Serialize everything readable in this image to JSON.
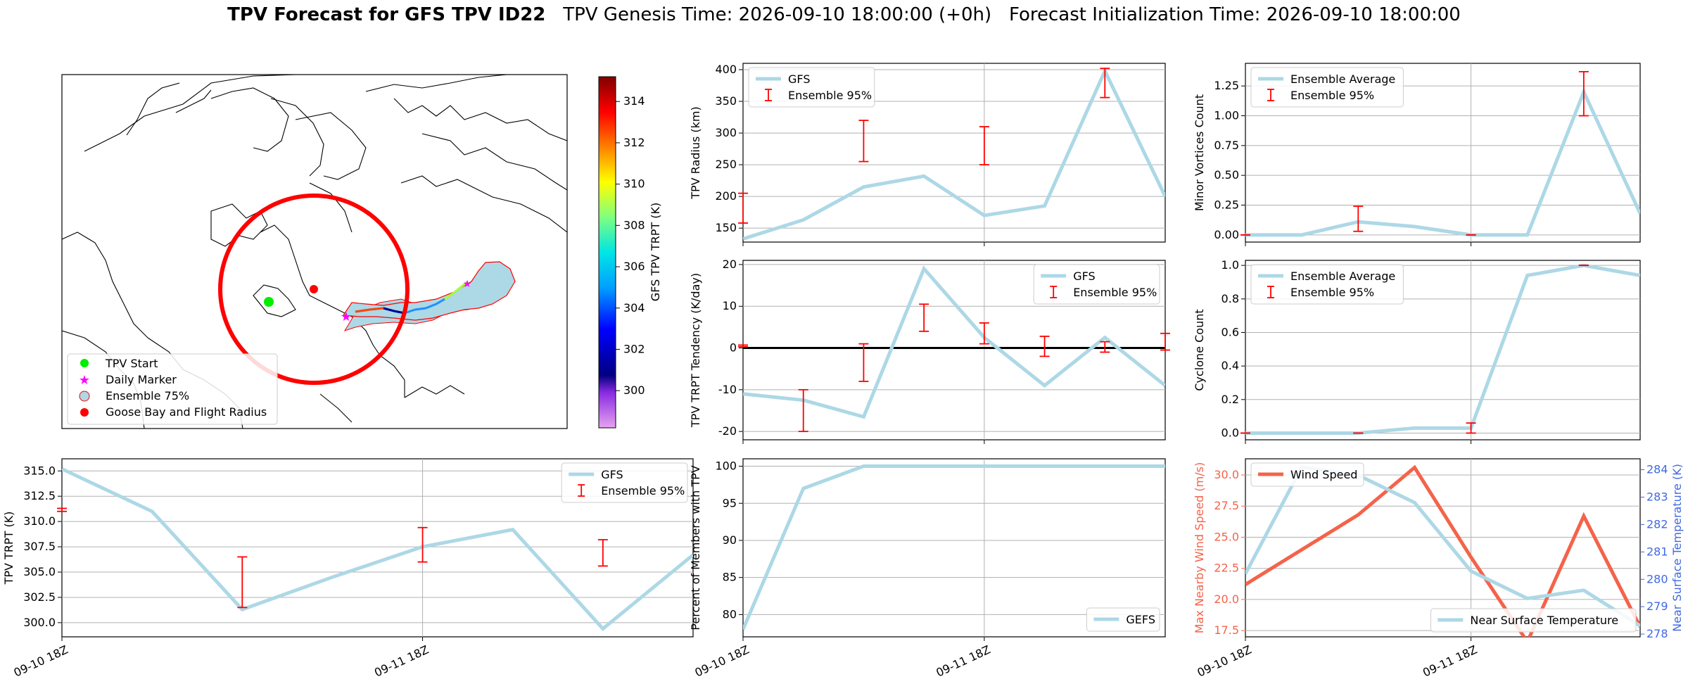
{
  "title": {
    "main": "TPV Forecast for GFS TPV ID22",
    "genesis": "TPV Genesis Time: 2026-09-10 18:00:00 (+0h)",
    "init": "Forecast Initialization Time: 2026-09-10 18:00:00"
  },
  "colors": {
    "gfs_line": "#add8e6",
    "errorbar": "#ff0000",
    "wind": "#f4634a",
    "temp_axis": "#4169e1",
    "radius_circle": "#ff0000"
  },
  "map": {
    "legend": [
      {
        "label": "TPV Start",
        "icon": "green-dot-icon"
      },
      {
        "label": "Daily Marker",
        "icon": "magenta-star-icon"
      },
      {
        "label": "Ensemble 75%",
        "icon": "blue-patch-icon"
      },
      {
        "label": "Goose Bay and Flight Radius",
        "icon": "red-dot-icon"
      }
    ],
    "colorbar": {
      "label": "GFS TPV TRPT (K)",
      "ticks": [
        300,
        302,
        304,
        306,
        308,
        310,
        312,
        314
      ],
      "min": 298.2,
      "max": 315.2
    }
  },
  "chart_data": [
    {
      "id": "radius",
      "type": "line",
      "x": [
        "2026-09-10 18Z",
        "2026-09-11 00Z",
        "2026-09-11 06Z",
        "2026-09-11 12Z",
        "2026-09-11 18Z",
        "2026-09-12 00Z",
        "2026-09-12 06Z",
        "2026-09-12 12Z"
      ],
      "series": [
        {
          "name": "GFS",
          "values": [
            133,
            163,
            215,
            232,
            170,
            185,
            398,
            200
          ]
        }
      ],
      "errorbars": {
        "name": "Ensemble 95%",
        "x": [
          "2026-09-10 18Z",
          "2026-09-11 06Z",
          "2026-09-11 18Z",
          "2026-09-12 06Z"
        ],
        "low": [
          158,
          255,
          250,
          356
        ],
        "high": [
          205,
          320,
          310,
          402
        ]
      },
      "ylabel": "TPV Radius (km)",
      "ylim": [
        128,
        410
      ],
      "yticks": [
        150,
        200,
        250,
        300,
        350,
        400
      ],
      "legend": "top-left"
    },
    {
      "id": "minor",
      "type": "line",
      "x": [
        "2026-09-10 18Z",
        "2026-09-11 00Z",
        "2026-09-11 06Z",
        "2026-09-11 12Z",
        "2026-09-11 18Z",
        "2026-09-12 00Z",
        "2026-09-12 06Z",
        "2026-09-12 12Z"
      ],
      "series": [
        {
          "name": "Ensemble Average",
          "values": [
            0,
            0,
            0.11,
            0.07,
            0,
            0,
            1.2,
            0.18
          ]
        }
      ],
      "errorbars": {
        "name": "Ensemble 95%",
        "x": [
          "2026-09-10 18Z",
          "2026-09-11 06Z",
          "2026-09-11 18Z",
          "2026-09-12 06Z"
        ],
        "low": [
          0,
          0.03,
          0,
          1.0
        ],
        "high": [
          0,
          0.24,
          0,
          1.37
        ]
      },
      "ylabel": "Minor Vortices Count",
      "ylim": [
        -0.06,
        1.44
      ],
      "yticks": [
        "0.00",
        "0.25",
        "0.50",
        "0.75",
        "1.00",
        "1.25"
      ],
      "legend": "top-left"
    },
    {
      "id": "tendency",
      "type": "line",
      "x": [
        "2026-09-10 18Z",
        "2026-09-11 00Z",
        "2026-09-11 06Z",
        "2026-09-11 12Z",
        "2026-09-11 18Z",
        "2026-09-12 00Z",
        "2026-09-12 06Z",
        "2026-09-12 12Z"
      ],
      "series": [
        {
          "name": "GFS",
          "values": [
            -11,
            -12.5,
            -16.5,
            19,
            2.5,
            -9,
            2.5,
            -9
          ]
        }
      ],
      "errorbars": {
        "name": "Ensemble 95%",
        "x": [
          "2026-09-10 18Z",
          "2026-09-11 00Z",
          "2026-09-11 06Z",
          "2026-09-11 12Z",
          "2026-09-11 18Z",
          "2026-09-12 00Z",
          "2026-09-12 06Z",
          "2026-09-12 12Z"
        ],
        "low": [
          0.3,
          -20,
          -8,
          4,
          1,
          -2,
          -1,
          -0.5
        ],
        "high": [
          0.7,
          -10,
          1,
          10.5,
          6,
          2.8,
          1.5,
          3.5
        ]
      },
      "ylabel": "TPV TRPT Tendency (K/day)",
      "ylim": [
        -22,
        21
      ],
      "yticks": [
        -20,
        -10,
        0,
        10,
        20
      ],
      "zero_line": true,
      "legend": "top-right"
    },
    {
      "id": "cyclone",
      "type": "line",
      "x": [
        "2026-09-10 18Z",
        "2026-09-11 00Z",
        "2026-09-11 06Z",
        "2026-09-11 12Z",
        "2026-09-11 18Z",
        "2026-09-12 00Z",
        "2026-09-12 06Z",
        "2026-09-12 12Z"
      ],
      "series": [
        {
          "name": "Ensemble Average",
          "values": [
            0,
            0,
            0,
            0.03,
            0.03,
            0.94,
            1.0,
            0.94
          ]
        }
      ],
      "errorbars": {
        "name": "Ensemble 95%",
        "x": [
          "2026-09-10 18Z",
          "2026-09-11 06Z",
          "2026-09-11 18Z",
          "2026-09-12 06Z"
        ],
        "low": [
          0,
          0,
          0,
          1.0
        ],
        "high": [
          0,
          0,
          0.06,
          1.0
        ]
      },
      "ylabel": "Cyclone Count",
      "ylim": [
        -0.04,
        1.03
      ],
      "yticks": [
        "0.0",
        "0.2",
        "0.4",
        "0.6",
        "0.8",
        "1.0"
      ],
      "legend": "top-left"
    },
    {
      "id": "trpt",
      "type": "line",
      "x": [
        "2026-09-10 18Z",
        "2026-09-11 00Z",
        "2026-09-11 06Z",
        "2026-09-11 12Z",
        "2026-09-11 18Z",
        "2026-09-12 00Z",
        "2026-09-12 06Z",
        "2026-09-12 12Z"
      ],
      "series": [
        {
          "name": "GFS",
          "values": [
            315.2,
            311,
            301.3,
            304.5,
            307.5,
            309.2,
            299.4,
            306.7
          ]
        }
      ],
      "errorbars": {
        "name": "Ensemble 95%",
        "x": [
          "2026-09-10 18Z",
          "2026-09-11 06Z",
          "2026-09-11 18Z",
          "2026-09-12 06Z"
        ],
        "low": [
          311,
          301.5,
          306,
          305.6
        ],
        "high": [
          311.3,
          306.5,
          309.4,
          308.2
        ]
      },
      "ylabel": "TPV TRPT (K)",
      "ylim": [
        298.6,
        316.2
      ],
      "yticks": [
        "300.0",
        "302.5",
        "305.0",
        "307.5",
        "310.0",
        "312.5",
        "315.0"
      ],
      "xtick_labels": [
        "09-10 18Z",
        "09-11 18Z"
      ],
      "legend": "top-right"
    },
    {
      "id": "members",
      "type": "line",
      "x": [
        "2026-09-10 18Z",
        "2026-09-11 00Z",
        "2026-09-11 06Z",
        "2026-09-11 12Z",
        "2026-09-11 18Z",
        "2026-09-12 00Z",
        "2026-09-12 06Z",
        "2026-09-12 12Z"
      ],
      "series": [
        {
          "name": "GEFS",
          "values": [
            78,
            97,
            100,
            100,
            100,
            100,
            100,
            100
          ]
        }
      ],
      "ylabel": "Percent of Members with TPV",
      "ylim": [
        77,
        101
      ],
      "yticks": [
        80,
        85,
        90,
        95,
        100
      ],
      "xtick_labels": [
        "09-10 18Z",
        "09-11 18Z"
      ],
      "legend": "bottom-right"
    },
    {
      "id": "wind",
      "type": "line",
      "x": [
        "2026-09-10 18Z",
        "2026-09-11 00Z",
        "2026-09-11 06Z",
        "2026-09-11 12Z",
        "2026-09-11 18Z",
        "2026-09-12 00Z",
        "2026-09-12 06Z",
        "2026-09-12 12Z"
      ],
      "series": [
        {
          "name": "Wind Speed",
          "axis": "left",
          "values": [
            21.2,
            24.0,
            26.8,
            30.6,
            23.4,
            16.6,
            26.7,
            17.8
          ]
        },
        {
          "name": "Near Surface Temperature",
          "axis": "right",
          "values": [
            280.2,
            284.1,
            283.8,
            282.8,
            280.3,
            279.3,
            279.6,
            278.3
          ]
        }
      ],
      "ylabel": "Max Nearby Wind Speed (m/s)",
      "ylabel_right": "Near Surface Temperature (K)",
      "ylim": [
        17,
        31.3
      ],
      "ylim_right": [
        277.9,
        284.4
      ],
      "yticks": [
        "17.5",
        "20.0",
        "22.5",
        "25.0",
        "27.5",
        "30.0"
      ],
      "yticks_right": [
        278,
        279,
        280,
        281,
        282,
        283,
        284
      ],
      "xtick_labels": [
        "09-10 18Z",
        "09-11 18Z"
      ],
      "legend": "split"
    }
  ]
}
